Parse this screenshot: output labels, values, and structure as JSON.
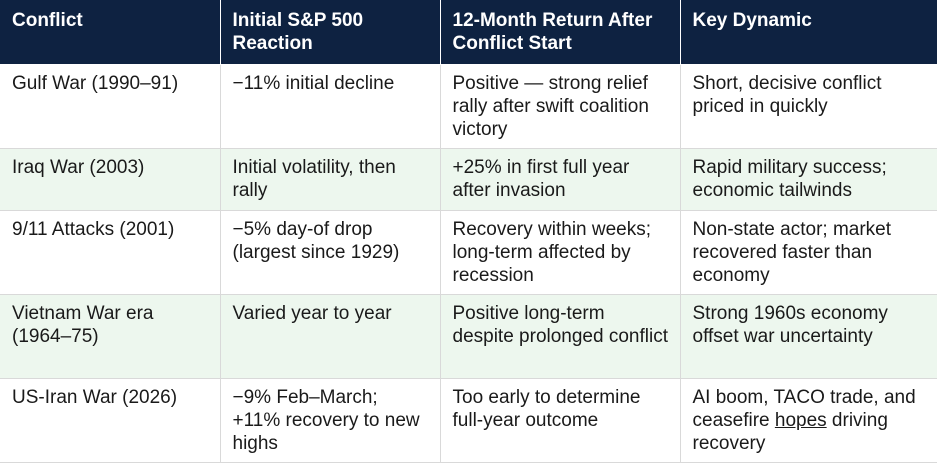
{
  "headers": [
    "Conflict",
    "Initial S&P 500 Reaction",
    "12-Month Return After Conflict Start",
    "Key Dynamic"
  ],
  "rows": [
    {
      "conflict": "Gulf War (1990–91)",
      "reaction": "−11% initial decline",
      "return": "Positive — strong relief rally after swift coalition victory",
      "dynamic": "Short, decisive conflict priced in quickly"
    },
    {
      "conflict": "Iraq War (2003)",
      "reaction": "Initial volatility, then rally",
      "return": "+25% in first full year after invasion",
      "dynamic": "Rapid military success; economic tailwinds"
    },
    {
      "conflict": "9/11 Attacks (2001)",
      "reaction": "−5% day-of drop (largest since 1929)",
      "return": "Recovery within weeks; long-term affected by recession",
      "dynamic": "Non-state actor; market recovered faster than economy"
    },
    {
      "conflict": "Vietnam War era (1964–75)",
      "reaction": "Varied year to year",
      "return": "Positive long-term despite prolonged conflict",
      "dynamic": "Strong 1960s economy offset war uncertainty"
    },
    {
      "conflict": "US-Iran War (2026)",
      "reaction": "−9% Feb–March; +11% recovery to new highs",
      "return": "Too early to determine full-year outcome",
      "dynamic_before": "AI boom, TACO trade, and ceasefire ",
      "dynamic_link": "hopes",
      "dynamic_after": " driving recovery"
    }
  ],
  "colors": {
    "header_bg": "#0e2241",
    "header_text": "#ffffff",
    "row_alt_bg": "#edf7ee",
    "row_bg": "#ffffff",
    "grid": "#d9d9d9"
  }
}
